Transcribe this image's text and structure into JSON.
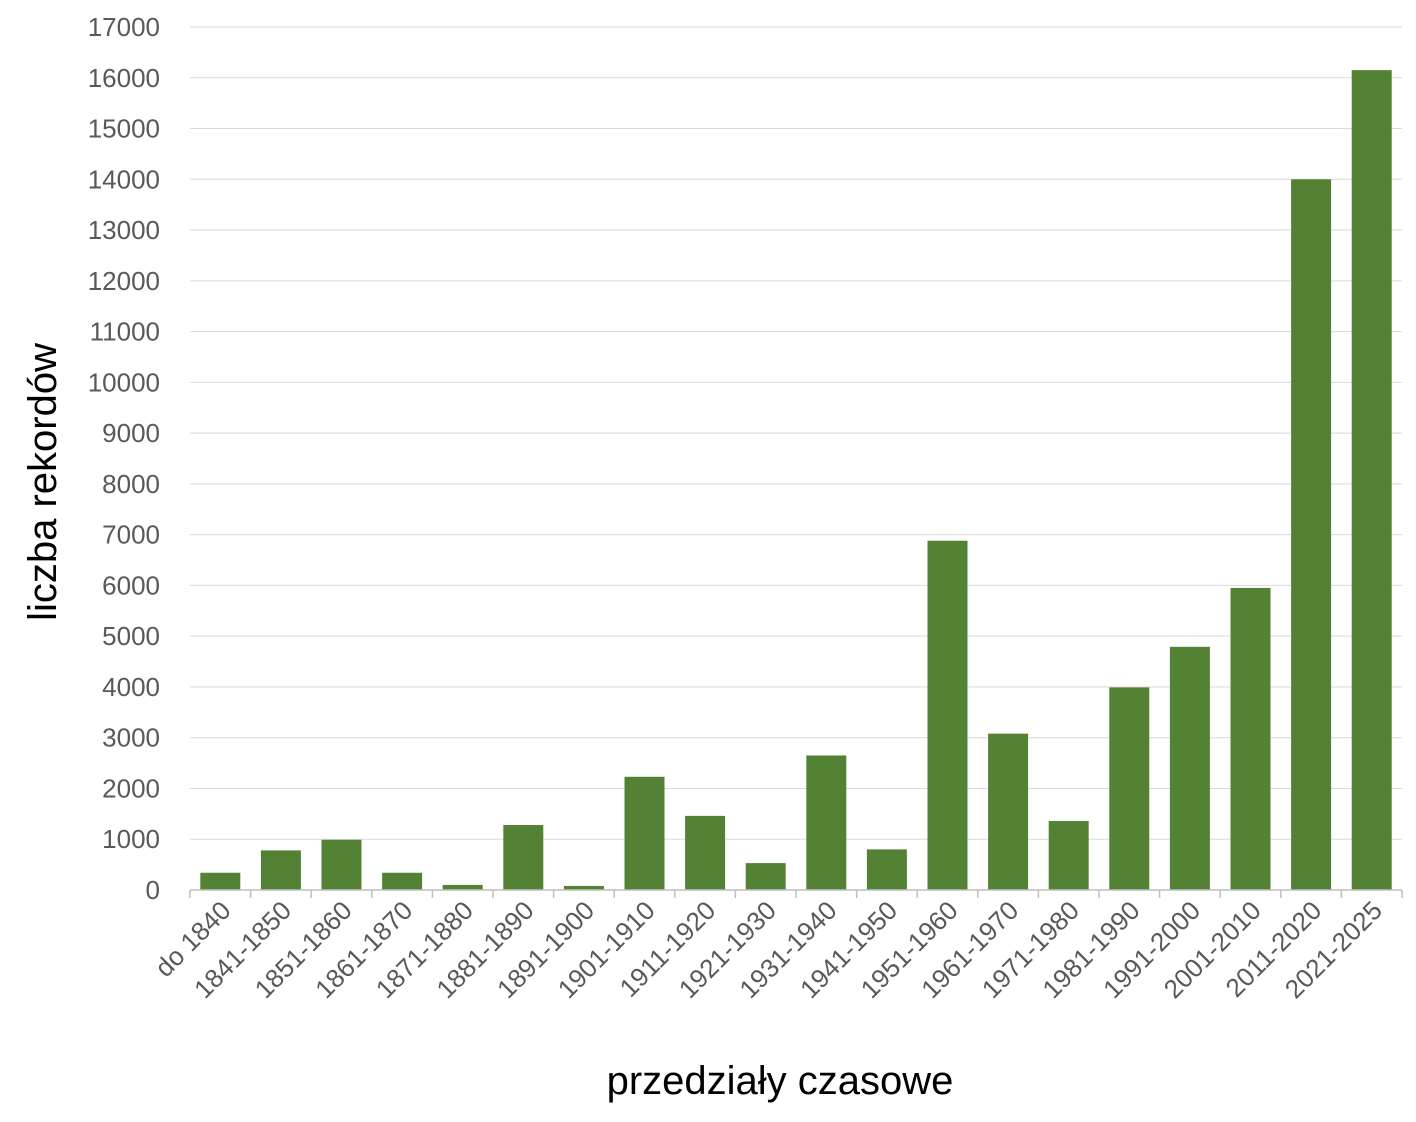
{
  "chart_data": {
    "type": "bar",
    "title": "",
    "xlabel": "przedziały czasowe",
    "ylabel": "liczba rekordów",
    "categories": [
      "do 1840",
      "1841-1850",
      "1851-1860",
      "1861-1870",
      "1871-1880",
      "1881-1890",
      "1891-1900",
      "1901-1910",
      "1911-1920",
      "1921-1930",
      "1931-1940",
      "1941-1950",
      "1951-1960",
      "1961-1970",
      "1971-1980",
      "1981-1990",
      "1991-2000",
      "2001-2010",
      "2011-2020",
      "2021-2025"
    ],
    "values": [
      340,
      780,
      990,
      340,
      100,
      1280,
      80,
      2230,
      1460,
      530,
      2650,
      800,
      6880,
      3080,
      1360,
      3990,
      4790,
      5950,
      14000,
      16150
    ],
    "ylim": [
      0,
      17000
    ],
    "yticks": [
      0,
      1000,
      2000,
      3000,
      4000,
      5000,
      6000,
      7000,
      8000,
      9000,
      10000,
      11000,
      12000,
      13000,
      14000,
      15000,
      16000,
      17000
    ],
    "grid": true,
    "legend": "none",
    "colors": {
      "bar": "#548235",
      "grid": "#d9d9d9",
      "axis": "#bfbfbf",
      "tick_text": "#595959"
    }
  }
}
